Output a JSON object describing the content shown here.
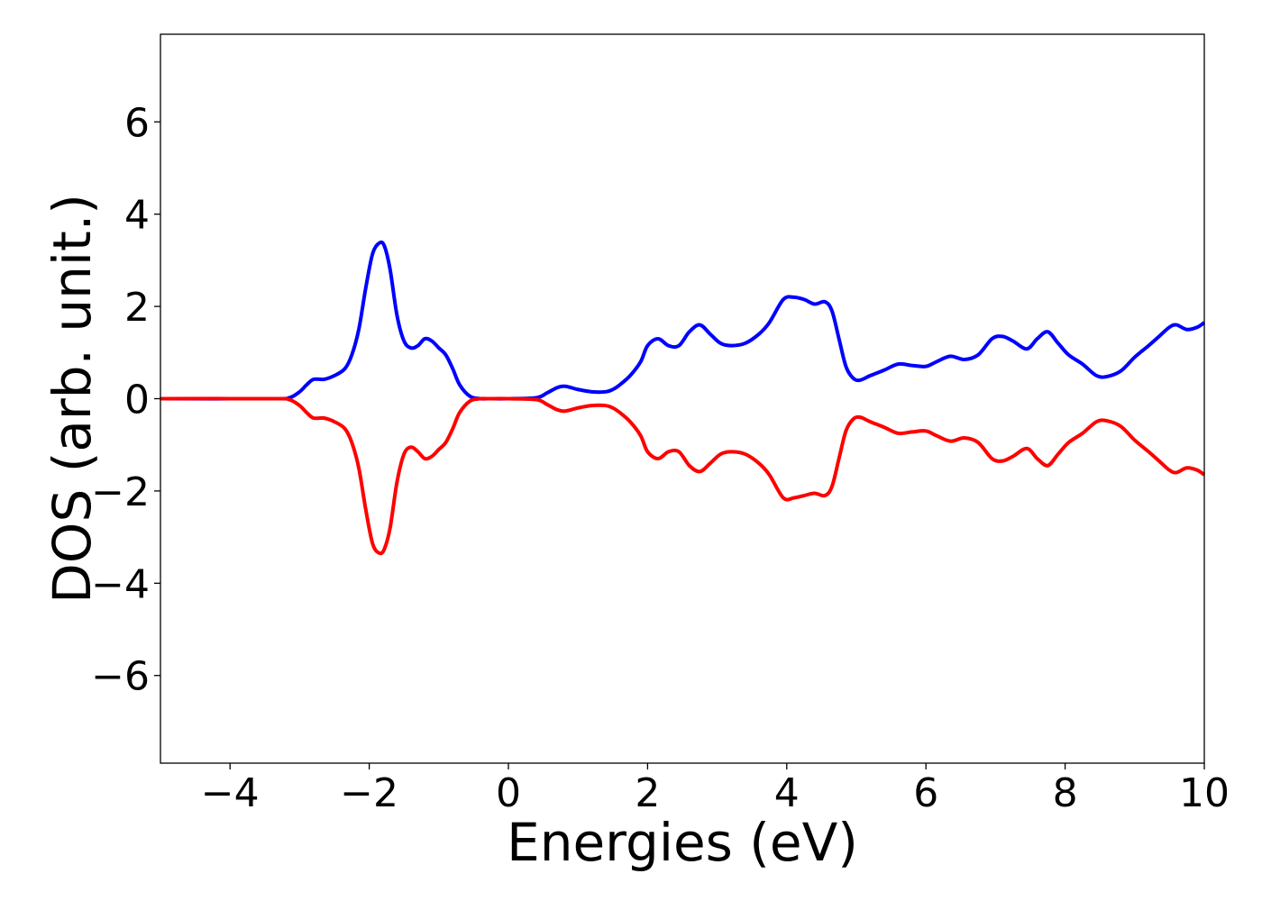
{
  "chart_data": {
    "type": "line",
    "title": "",
    "xlabel": "Energies (eV)",
    "ylabel": "DOS (arb. unit.)",
    "xlim": [
      -5,
      10
    ],
    "ylim": [
      -7.9,
      7.9
    ],
    "x_ticks": [
      -4,
      -2,
      0,
      2,
      4,
      6,
      8,
      10
    ],
    "x_tick_labels": [
      "−4",
      "−2",
      "0",
      "2",
      "4",
      "6",
      "8",
      "10"
    ],
    "y_ticks": [
      -6,
      -4,
      -2,
      0,
      2,
      4,
      6
    ],
    "y_tick_labels": [
      "−6",
      "−4",
      "−2",
      "0",
      "2",
      "4",
      "6"
    ],
    "grid": false,
    "legend": "none",
    "series": [
      {
        "color": "#0000ff",
        "x": [
          -5.0,
          -3.4,
          -3.15,
          -3.0,
          -2.9,
          -2.8,
          -2.65,
          -2.5,
          -2.35,
          -2.25,
          -2.15,
          -2.05,
          -1.95,
          -1.85,
          -1.78,
          -1.7,
          -1.6,
          -1.5,
          -1.4,
          -1.3,
          -1.2,
          -1.1,
          -1.0,
          -0.9,
          -0.8,
          -0.7,
          -0.55,
          -0.4,
          -0.3,
          0.0,
          0.4,
          0.55,
          0.7,
          0.8,
          0.9,
          1.0,
          1.2,
          1.4,
          1.5,
          1.6,
          1.75,
          1.9,
          2.0,
          2.15,
          2.3,
          2.45,
          2.6,
          2.75,
          2.9,
          3.05,
          3.2,
          3.4,
          3.6,
          3.75,
          3.95,
          4.1,
          4.25,
          4.4,
          4.55,
          4.65,
          4.75,
          4.85,
          4.95,
          5.05,
          5.2,
          5.4,
          5.6,
          5.8,
          6.0,
          6.15,
          6.35,
          6.55,
          6.75,
          6.95,
          7.1,
          7.25,
          7.45,
          7.6,
          7.75,
          7.9,
          8.05,
          8.25,
          8.45,
          8.6,
          8.8,
          9.0,
          9.2,
          9.35,
          9.5,
          9.6,
          9.75,
          9.9,
          10.0
        ],
        "y": [
          0.0,
          0.0,
          0.02,
          0.15,
          0.3,
          0.42,
          0.42,
          0.5,
          0.65,
          0.95,
          1.5,
          2.4,
          3.15,
          3.38,
          3.3,
          2.8,
          1.8,
          1.25,
          1.1,
          1.15,
          1.3,
          1.25,
          1.1,
          0.95,
          0.65,
          0.3,
          0.05,
          0.0,
          0.0,
          0.0,
          0.02,
          0.12,
          0.24,
          0.27,
          0.24,
          0.2,
          0.15,
          0.15,
          0.2,
          0.3,
          0.5,
          0.8,
          1.15,
          1.3,
          1.15,
          1.15,
          1.45,
          1.6,
          1.4,
          1.2,
          1.15,
          1.2,
          1.4,
          1.65,
          2.15,
          2.2,
          2.15,
          2.05,
          2.1,
          1.9,
          1.3,
          0.7,
          0.45,
          0.4,
          0.5,
          0.62,
          0.75,
          0.72,
          0.7,
          0.8,
          0.92,
          0.85,
          0.95,
          1.3,
          1.35,
          1.25,
          1.08,
          1.3,
          1.45,
          1.2,
          0.95,
          0.75,
          0.5,
          0.48,
          0.6,
          0.9,
          1.15,
          1.35,
          1.55,
          1.6,
          1.5,
          1.55,
          1.65
        ]
      },
      {
        "color": "#ff0000",
        "x": [
          -5.0,
          -3.4,
          -3.15,
          -3.0,
          -2.9,
          -2.8,
          -2.65,
          -2.5,
          -2.35,
          -2.25,
          -2.15,
          -2.05,
          -1.95,
          -1.85,
          -1.78,
          -1.7,
          -1.6,
          -1.5,
          -1.4,
          -1.3,
          -1.2,
          -1.1,
          -1.0,
          -0.9,
          -0.8,
          -0.7,
          -0.55,
          -0.4,
          -0.3,
          0.0,
          0.4,
          0.55,
          0.7,
          0.8,
          0.9,
          1.0,
          1.2,
          1.4,
          1.5,
          1.6,
          1.75,
          1.9,
          2.0,
          2.15,
          2.3,
          2.45,
          2.6,
          2.75,
          2.9,
          3.05,
          3.2,
          3.4,
          3.6,
          3.75,
          3.95,
          4.1,
          4.25,
          4.4,
          4.55,
          4.65,
          4.75,
          4.85,
          4.95,
          5.05,
          5.2,
          5.4,
          5.6,
          5.8,
          6.0,
          6.15,
          6.35,
          6.55,
          6.75,
          6.95,
          7.1,
          7.25,
          7.45,
          7.6,
          7.75,
          7.9,
          8.05,
          8.25,
          8.45,
          8.6,
          8.8,
          9.0,
          9.2,
          9.35,
          9.5,
          9.6,
          9.75,
          9.9,
          10.0
        ],
        "y": [
          0.0,
          0.0,
          -0.02,
          -0.15,
          -0.3,
          -0.42,
          -0.42,
          -0.5,
          -0.65,
          -0.95,
          -1.5,
          -2.4,
          -3.15,
          -3.35,
          -3.25,
          -2.8,
          -1.8,
          -1.2,
          -1.05,
          -1.15,
          -1.3,
          -1.25,
          -1.1,
          -0.95,
          -0.65,
          -0.3,
          -0.05,
          0.0,
          0.0,
          0.0,
          -0.02,
          -0.12,
          -0.24,
          -0.27,
          -0.24,
          -0.2,
          -0.15,
          -0.15,
          -0.2,
          -0.3,
          -0.5,
          -0.8,
          -1.15,
          -1.3,
          -1.15,
          -1.15,
          -1.45,
          -1.58,
          -1.4,
          -1.2,
          -1.15,
          -1.2,
          -1.4,
          -1.65,
          -2.15,
          -2.15,
          -2.1,
          -2.05,
          -2.1,
          -1.9,
          -1.3,
          -0.7,
          -0.45,
          -0.4,
          -0.5,
          -0.62,
          -0.75,
          -0.72,
          -0.7,
          -0.8,
          -0.92,
          -0.85,
          -0.95,
          -1.3,
          -1.35,
          -1.25,
          -1.08,
          -1.3,
          -1.45,
          -1.2,
          -0.95,
          -0.75,
          -0.5,
          -0.48,
          -0.6,
          -0.9,
          -1.15,
          -1.35,
          -1.55,
          -1.6,
          -1.5,
          -1.55,
          -1.65
        ]
      }
    ]
  }
}
